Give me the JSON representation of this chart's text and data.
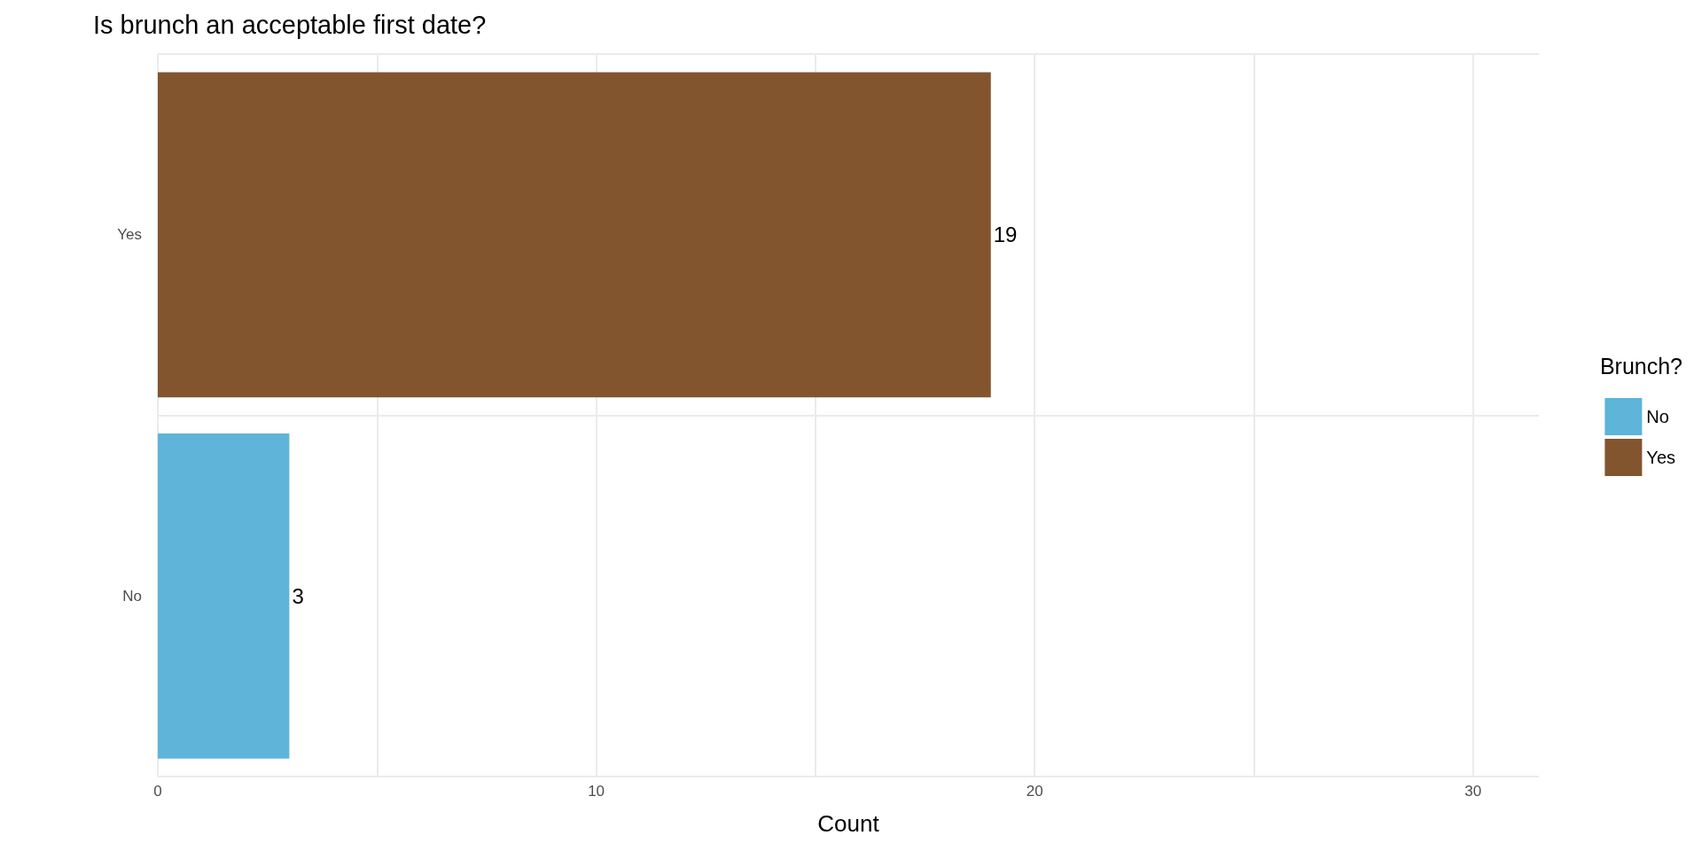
{
  "chart_data": {
    "type": "bar",
    "orientation": "horizontal",
    "title": "Is brunch an acceptable first date?",
    "xlabel": "Count",
    "legend_title": "Brunch?",
    "categories": [
      "Yes",
      "No"
    ],
    "series": [
      {
        "name": "No",
        "color": "#5eb4d9",
        "values": [
          null,
          3
        ]
      },
      {
        "name": "Yes",
        "color": "#82552f",
        "values": [
          19,
          null
        ]
      }
    ],
    "xlim": [
      0,
      31.5
    ],
    "xticks": [
      0,
      {
        "value": 5,
        "label": null
      },
      10,
      {
        "value": 15,
        "label": null
      },
      20,
      {
        "value": 25,
        "label": null
      },
      30
    ],
    "grid": true,
    "legend": "right",
    "data_labels": true
  }
}
